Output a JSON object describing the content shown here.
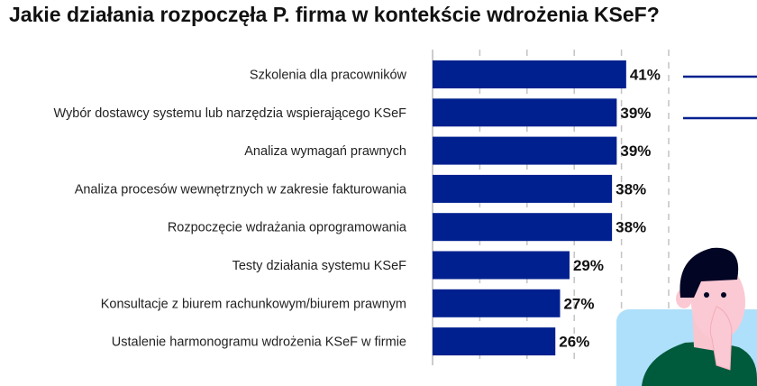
{
  "chart_data": {
    "type": "bar",
    "orientation": "horizontal",
    "title": "Jakie działania rozpoczęła P. firma w kontekście wdrożenia KSeF?",
    "categories": [
      "Szkolenia dla pracowników",
      "Wybór dostawcy systemu lub narzędzia wspierającego KSeF",
      "Analiza wymagań prawnych",
      "Analiza procesów wewnętrznych w zakresie fakturowania",
      "Rozpoczęcie wdrażania oprogramowania",
      "Testy działania systemu KSeF",
      "Konsultacje z biurem rachunkowym/biurem prawnym",
      "Ustalenie harmonogramu wdrożenia KSeF w firmie"
    ],
    "values": [
      41,
      39,
      39,
      38,
      38,
      29,
      27,
      26
    ],
    "labels": [
      "41%",
      "39%",
      "39%",
      "38%",
      "38%",
      "29%",
      "27%",
      "26%"
    ],
    "unit": "%",
    "xlim": [
      0,
      50
    ],
    "grid": true,
    "bar_color": "#00208f"
  }
}
